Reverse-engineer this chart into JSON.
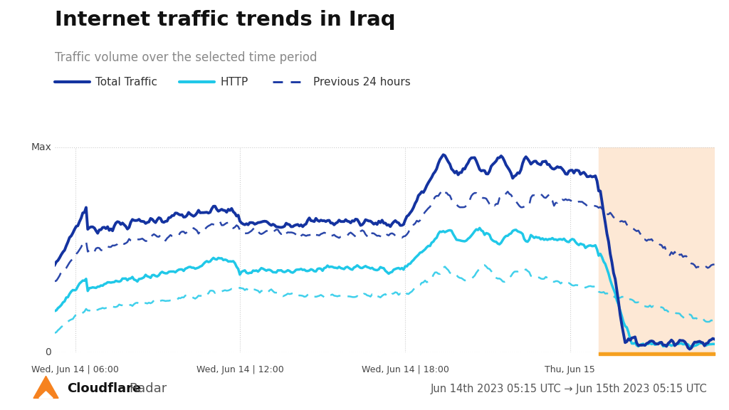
{
  "title": "Internet traffic trends in Iraq",
  "subtitle": "Traffic volume over the selected time period",
  "xlabel_ticks": [
    "Wed, Jun 14 | 06:00",
    "Wed, Jun 14 | 12:00",
    "Wed, Jun 14 | 18:00",
    "Thu, Jun 15"
  ],
  "ylabel_max": "Max",
  "ylabel_zero": "0",
  "footer_left": "Cloudflare Radar",
  "footer_right": "Jun 14th 2023 05:15 UTC → Jun 15th 2023 05:15 UTC",
  "total_traffic_color": "#1433a0",
  "http_color": "#20c8e8",
  "shutdown_bg_color": "#fde8d5",
  "shutdown_bar_color": "#f5a020",
  "bg_color": "#ffffff",
  "grid_color": "#cccccc",
  "text_color": "#444444",
  "legend_items": [
    "Total Traffic",
    "HTTP",
    "Previous 24 hours"
  ]
}
